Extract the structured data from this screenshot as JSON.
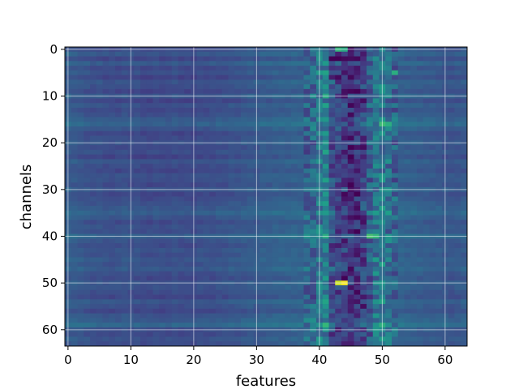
{
  "chart_data": {
    "type": "heatmap",
    "title": "",
    "xlabel": "features",
    "ylabel": "channels",
    "x_ticks": [
      "0",
      "10",
      "20",
      "30",
      "40",
      "50",
      "60"
    ],
    "y_ticks": [
      "0",
      "10",
      "20",
      "30",
      "40",
      "50",
      "60"
    ],
    "xlim": [
      -0.5,
      63.5
    ],
    "ylim": [
      63.5,
      -0.5
    ],
    "n_rows": 64,
    "n_cols": 64,
    "grid": true,
    "colormap": "viridis",
    "value_range": [
      0,
      1
    ],
    "baseline_value": 0.26,
    "row_offsets": [
      0.0,
      0.04,
      -0.02,
      0.05,
      -0.01,
      0.02,
      -0.03,
      0.03,
      0.01,
      -0.02,
      0.04,
      -0.03,
      0.02,
      -0.01,
      0.01,
      0.05,
      0.08,
      0.03,
      -0.02,
      0.0,
      0.02,
      -0.01,
      0.01,
      -0.03,
      0.03,
      0.0,
      -0.02,
      0.02,
      0.01,
      -0.01,
      0.03,
      -0.02,
      0.0,
      0.02,
      0.04,
      0.07,
      0.03,
      -0.01,
      0.02,
      0.01,
      0.08,
      0.02,
      0.0,
      0.03,
      0.01,
      0.04,
      0.02,
      0.05,
      0.01,
      -0.01,
      0.03,
      0.02,
      0.0,
      -0.02,
      0.04,
      0.01,
      -0.02,
      0.03,
      0.05,
      0.1,
      0.01,
      -0.01,
      0.02,
      0.0
    ],
    "col_offsets_left": [
      0.02,
      0.01,
      0.0,
      -0.01,
      -0.02,
      -0.02,
      -0.03,
      -0.03,
      -0.03,
      -0.02,
      -0.03,
      -0.03,
      -0.04,
      -0.04,
      -0.03,
      -0.04,
      -0.04,
      -0.03,
      -0.04,
      -0.04,
      -0.04,
      -0.03,
      -0.03,
      -0.03,
      -0.02,
      -0.02,
      -0.01,
      -0.01,
      0.0,
      0.01,
      0.01,
      0.02,
      0.02,
      0.03,
      0.03,
      0.03,
      0.04,
      0.04
    ],
    "feature_band": {
      "col_start": 38,
      "col_end": 52,
      "profile": [
        0.05,
        0.1,
        0.2,
        0.28,
        -0.05,
        -0.15,
        -0.2,
        -0.25,
        -0.22,
        -0.15,
        0.05,
        0.2,
        0.25,
        0.15,
        0.08
      ],
      "amplitude": 0.18
    },
    "col_offsets_right": [
      0.04,
      0.03,
      0.03,
      0.02,
      0.02,
      0.01,
      0.01,
      0.0,
      -0.01,
      0.0,
      0.01
    ],
    "highlights": [
      {
        "row": 50,
        "col": 44,
        "value": 0.98
      },
      {
        "row": 50,
        "col": 43,
        "value": 0.92
      },
      {
        "row": 40,
        "col": 48,
        "value": 0.7
      },
      {
        "row": 40,
        "col": 49,
        "value": 0.66
      },
      {
        "row": 16,
        "col": 50,
        "value": 0.68
      },
      {
        "row": 16,
        "col": 51,
        "value": 0.62
      },
      {
        "row": 5,
        "col": 52,
        "value": 0.62
      },
      {
        "row": 0,
        "col": 43,
        "value": 0.65
      },
      {
        "row": 0,
        "col": 44,
        "value": 0.6
      },
      {
        "row": 2,
        "col": 42,
        "value": 0.0
      },
      {
        "row": 2,
        "col": 43,
        "value": 0.0
      },
      {
        "row": 2,
        "col": 44,
        "value": 0.02
      },
      {
        "row": 6,
        "col": 45,
        "value": 0.02
      },
      {
        "row": 55,
        "col": 47,
        "value": 0.03
      },
      {
        "row": 54,
        "col": 46,
        "value": 0.05
      }
    ]
  }
}
